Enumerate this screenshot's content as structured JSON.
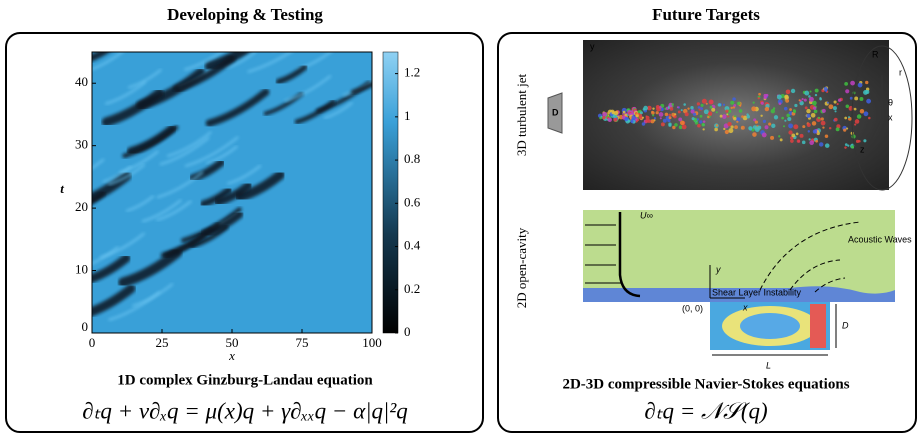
{
  "left": {
    "title": "Developing & Testing",
    "plot": {
      "xlim": [
        0,
        100
      ],
      "ylim": [
        0,
        45
      ],
      "xticks": [
        0,
        25,
        50,
        75,
        100
      ],
      "yticks": [
        0,
        10,
        20,
        30,
        40
      ],
      "xlabel": "x",
      "ylabel": "t",
      "colorbar": {
        "lim": [
          0,
          1.3
        ],
        "ticks": [
          0,
          0.2,
          0.4,
          0.6,
          0.8,
          1,
          1.2
        ]
      }
    },
    "caption": "1D complex Ginzburg-Landau equation",
    "equation": "∂ₜq + ν∂ₓq = μ(x)q + γ∂ₓₓq − α|q|²q"
  },
  "right": {
    "title": "Future Targets",
    "panels": [
      {
        "label": "3D turbulent jet",
        "annotations": [
          "D",
          "y",
          "R",
          "r",
          "θ",
          "x",
          "z"
        ]
      },
      {
        "label": "2D open-cavity",
        "annotations": [
          "U∞",
          "Acoustic Waves",
          "Shear Layer Instability",
          "(0, 0)",
          "y",
          "x",
          "D",
          "L"
        ]
      }
    ],
    "caption": "2D-3D compressible Navier-Stokes equations",
    "equation": "∂ₜq = 𝒩𝒮(q)"
  }
}
